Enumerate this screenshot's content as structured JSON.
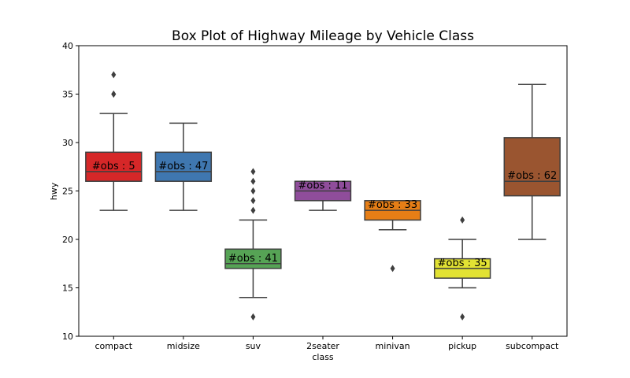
{
  "chart_data": {
    "type": "box",
    "title": "Box Plot of Highway Mileage by Vehicle Class",
    "xlabel": "class",
    "ylabel": "hwy",
    "ylim": [
      10,
      40
    ],
    "yticks": [
      10,
      15,
      20,
      25,
      30,
      35,
      40
    ],
    "grid": false,
    "categories": [
      "compact",
      "midsize",
      "suv",
      "2seater",
      "minivan",
      "pickup",
      "subcompact"
    ],
    "boxes": [
      {
        "category": "compact",
        "color": "#d62728",
        "q1": 26,
        "median": 27,
        "q3": 29,
        "whisker_low": 23,
        "whisker_high": 33,
        "outliers": [
          35,
          35,
          37
        ],
        "label": "#obs : 5"
      },
      {
        "category": "midsize",
        "color": "#3f77b0",
        "q1": 26,
        "median": 27,
        "q3": 29,
        "whisker_low": 23,
        "whisker_high": 32,
        "outliers": [],
        "label": "#obs : 47"
      },
      {
        "category": "suv",
        "color": "#56a355",
        "q1": 17,
        "median": 17.5,
        "q3": 19,
        "whisker_low": 14,
        "whisker_high": 22,
        "outliers": [
          12,
          23,
          24,
          25,
          26,
          27
        ],
        "label": "#obs : 41"
      },
      {
        "category": "2seater",
        "color": "#8f4d9b",
        "q1": 24,
        "median": 25,
        "q3": 26,
        "whisker_low": 23,
        "whisker_high": 26,
        "outliers": [],
        "label": "#obs : 11"
      },
      {
        "category": "minivan",
        "color": "#e67e16",
        "q1": 22,
        "median": 23,
        "q3": 24,
        "whisker_low": 21,
        "whisker_high": 24,
        "outliers": [
          17
        ],
        "label": "#obs : 33"
      },
      {
        "category": "pickup",
        "color": "#e2e233",
        "q1": 16,
        "median": 17,
        "q3": 18,
        "whisker_low": 15,
        "whisker_high": 20,
        "outliers": [
          12,
          22
        ],
        "label": "#obs : 35"
      },
      {
        "category": "subcompact",
        "color": "#9a5530",
        "q1": 24.5,
        "median": 26,
        "q3": 30.5,
        "whisker_low": 20,
        "whisker_high": 36,
        "outliers": [],
        "label": "#obs : 62"
      }
    ]
  }
}
